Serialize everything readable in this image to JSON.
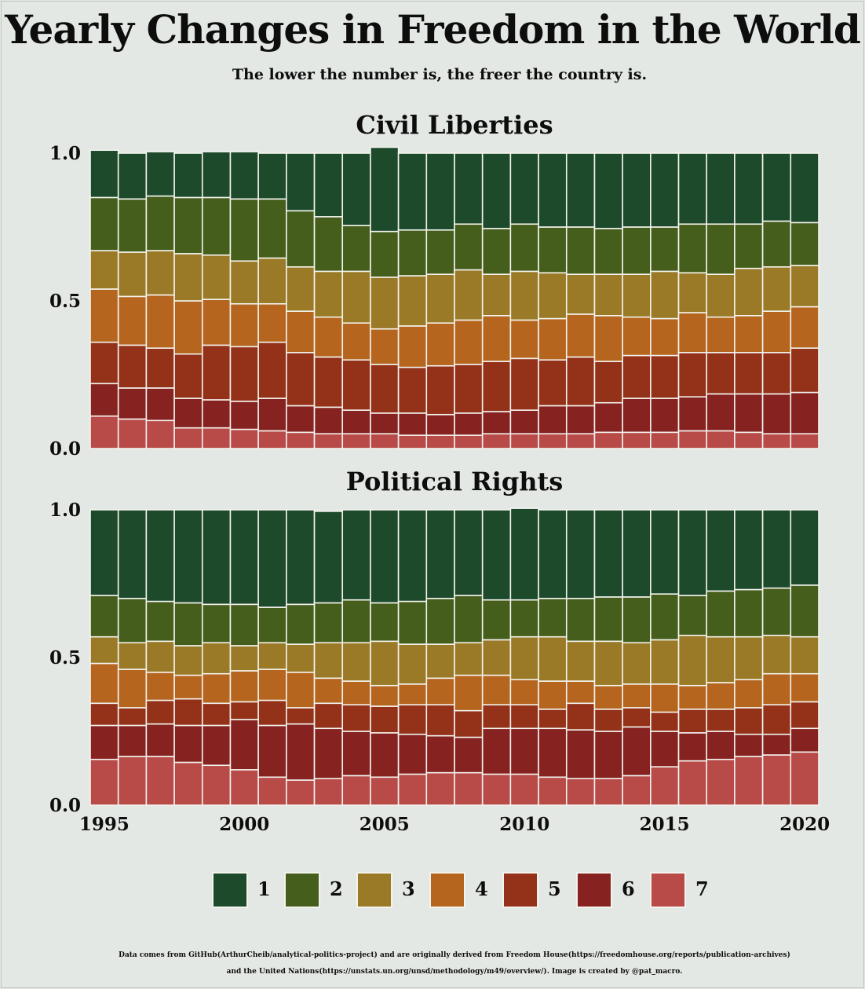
{
  "title": "Yearly Changes in Freedom in the World",
  "subtitle": "The lower the number is, the freer the country is.",
  "colors": {
    "1": "#1c4a2b",
    "2": "#455e1b",
    "3": "#9a7a27",
    "4": "#b5651e",
    "5": "#933119",
    "6": "#862220",
    "7": "#b84a48",
    "background": "#e4e8e4",
    "bar_edge": "#f3f3ee"
  },
  "legend": [
    {
      "label": "1",
      "color": "#1c4a2b"
    },
    {
      "label": "2",
      "color": "#455e1b"
    },
    {
      "label": "3",
      "color": "#9a7a27"
    },
    {
      "label": "4",
      "color": "#b5651e"
    },
    {
      "label": "5",
      "color": "#933119"
    },
    {
      "label": "6",
      "color": "#862220"
    },
    {
      "label": "7",
      "color": "#b84a48"
    }
  ],
  "footer": {
    "line1": "Data comes from GitHub(ArthurCheib/analytical-politics-project) and are originally derived from Freedom House(https://freedomhouse.org/reports/publication-archives)",
    "line2": "and the United Nations(https://unstats.un.org/unsd/methodology/m49/overview/). Image is created by @pat_macro."
  },
  "chart_data": [
    {
      "type": "bar",
      "stacked": true,
      "title": "Civil Liberties",
      "x": [
        1995,
        1996,
        1997,
        1998,
        1999,
        2000,
        2001,
        2002,
        2003,
        2004,
        2005,
        2006,
        2007,
        2008,
        2009,
        2010,
        2011,
        2012,
        2013,
        2014,
        2015,
        2016,
        2017,
        2018,
        2019,
        2020
      ],
      "xticks": [
        "1995",
        "2000",
        "2005",
        "2010",
        "2015",
        "2020"
      ],
      "yticks": [
        "0.0",
        "0.5",
        "1.0"
      ],
      "ylim": [
        0,
        1
      ],
      "stack_order": "7 at bottom, 1 at top",
      "series": [
        {
          "name": "7",
          "values": [
            0.11,
            0.1,
            0.095,
            0.07,
            0.07,
            0.065,
            0.06,
            0.055,
            0.05,
            0.05,
            0.05,
            0.045,
            0.045,
            0.045,
            0.05,
            0.05,
            0.05,
            0.05,
            0.055,
            0.055,
            0.055,
            0.06,
            0.06,
            0.055,
            0.05,
            0.05
          ]
        },
        {
          "name": "6",
          "values": [
            0.11,
            0.105,
            0.11,
            0.1,
            0.095,
            0.095,
            0.11,
            0.09,
            0.09,
            0.08,
            0.07,
            0.075,
            0.07,
            0.075,
            0.075,
            0.08,
            0.095,
            0.095,
            0.1,
            0.115,
            0.115,
            0.115,
            0.125,
            0.13,
            0.135,
            0.14
          ]
        },
        {
          "name": "5",
          "values": [
            0.14,
            0.145,
            0.135,
            0.15,
            0.185,
            0.185,
            0.19,
            0.18,
            0.17,
            0.17,
            0.165,
            0.155,
            0.165,
            0.165,
            0.17,
            0.175,
            0.155,
            0.165,
            0.14,
            0.145,
            0.145,
            0.15,
            0.14,
            0.14,
            0.14,
            0.15
          ]
        },
        {
          "name": "4",
          "values": [
            0.18,
            0.165,
            0.18,
            0.18,
            0.155,
            0.145,
            0.13,
            0.14,
            0.135,
            0.125,
            0.12,
            0.14,
            0.145,
            0.15,
            0.155,
            0.13,
            0.14,
            0.145,
            0.155,
            0.13,
            0.125,
            0.135,
            0.12,
            0.125,
            0.14,
            0.14
          ]
        },
        {
          "name": "3",
          "values": [
            0.13,
            0.15,
            0.15,
            0.16,
            0.15,
            0.145,
            0.155,
            0.15,
            0.155,
            0.175,
            0.175,
            0.17,
            0.165,
            0.17,
            0.14,
            0.165,
            0.155,
            0.135,
            0.14,
            0.145,
            0.16,
            0.135,
            0.145,
            0.16,
            0.15,
            0.14
          ]
        },
        {
          "name": "2",
          "values": [
            0.18,
            0.18,
            0.185,
            0.19,
            0.195,
            0.21,
            0.2,
            0.19,
            0.185,
            0.155,
            0.155,
            0.155,
            0.15,
            0.155,
            0.155,
            0.16,
            0.155,
            0.16,
            0.155,
            0.16,
            0.15,
            0.165,
            0.17,
            0.15,
            0.155,
            0.145
          ]
        },
        {
          "name": "1",
          "values": [
            0.16,
            0.155,
            0.15,
            0.15,
            0.155,
            0.16,
            0.155,
            0.195,
            0.215,
            0.245,
            0.285,
            0.26,
            0.26,
            0.24,
            0.255,
            0.24,
            0.25,
            0.25,
            0.255,
            0.25,
            0.25,
            0.24,
            0.24,
            0.24,
            0.23,
            0.235
          ]
        }
      ]
    },
    {
      "type": "bar",
      "stacked": true,
      "title": "Political Rights",
      "x": [
        1995,
        1996,
        1997,
        1998,
        1999,
        2000,
        2001,
        2002,
        2003,
        2004,
        2005,
        2006,
        2007,
        2008,
        2009,
        2010,
        2011,
        2012,
        2013,
        2014,
        2015,
        2016,
        2017,
        2018,
        2019,
        2020
      ],
      "xticks": [
        "1995",
        "2000",
        "2005",
        "2010",
        "2015",
        "2020"
      ],
      "yticks": [
        "0.0",
        "0.5",
        "1.0"
      ],
      "ylim": [
        0,
        1
      ],
      "stack_order": "7 at bottom, 1 at top",
      "series": [
        {
          "name": "7",
          "values": [
            0.155,
            0.165,
            0.165,
            0.145,
            0.135,
            0.12,
            0.095,
            0.085,
            0.09,
            0.1,
            0.095,
            0.105,
            0.11,
            0.11,
            0.105,
            0.105,
            0.095,
            0.09,
            0.09,
            0.1,
            0.13,
            0.15,
            0.155,
            0.165,
            0.17,
            0.18
          ]
        },
        {
          "name": "6",
          "values": [
            0.115,
            0.105,
            0.11,
            0.125,
            0.135,
            0.17,
            0.175,
            0.19,
            0.17,
            0.15,
            0.15,
            0.135,
            0.125,
            0.12,
            0.155,
            0.155,
            0.165,
            0.165,
            0.16,
            0.165,
            0.12,
            0.095,
            0.095,
            0.075,
            0.07,
            0.08
          ]
        },
        {
          "name": "5",
          "values": [
            0.075,
            0.06,
            0.08,
            0.09,
            0.075,
            0.06,
            0.085,
            0.055,
            0.085,
            0.09,
            0.09,
            0.1,
            0.105,
            0.09,
            0.08,
            0.08,
            0.065,
            0.09,
            0.075,
            0.065,
            0.065,
            0.08,
            0.075,
            0.09,
            0.1,
            0.09
          ]
        },
        {
          "name": "4",
          "values": [
            0.135,
            0.13,
            0.095,
            0.08,
            0.1,
            0.105,
            0.105,
            0.12,
            0.085,
            0.08,
            0.07,
            0.07,
            0.09,
            0.12,
            0.1,
            0.085,
            0.095,
            0.075,
            0.08,
            0.08,
            0.095,
            0.08,
            0.09,
            0.095,
            0.105,
            0.095
          ]
        },
        {
          "name": "3",
          "values": [
            0.09,
            0.09,
            0.105,
            0.1,
            0.105,
            0.085,
            0.09,
            0.095,
            0.12,
            0.13,
            0.15,
            0.135,
            0.115,
            0.11,
            0.12,
            0.145,
            0.15,
            0.135,
            0.15,
            0.14,
            0.15,
            0.17,
            0.155,
            0.145,
            0.13,
            0.125
          ]
        },
        {
          "name": "2",
          "values": [
            0.14,
            0.15,
            0.135,
            0.145,
            0.13,
            0.14,
            0.12,
            0.135,
            0.135,
            0.145,
            0.13,
            0.145,
            0.155,
            0.16,
            0.135,
            0.125,
            0.13,
            0.145,
            0.15,
            0.155,
            0.155,
            0.135,
            0.155,
            0.16,
            0.16,
            0.175
          ]
        },
        {
          "name": "1",
          "values": [
            0.29,
            0.3,
            0.31,
            0.315,
            0.32,
            0.32,
            0.33,
            0.32,
            0.31,
            0.305,
            0.315,
            0.31,
            0.3,
            0.29,
            0.305,
            0.31,
            0.3,
            0.3,
            0.295,
            0.295,
            0.285,
            0.29,
            0.275,
            0.27,
            0.265,
            0.255
          ]
        }
      ]
    }
  ]
}
